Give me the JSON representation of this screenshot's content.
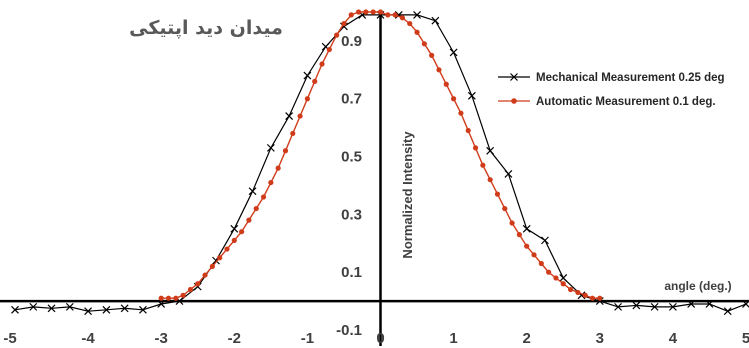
{
  "chart_data": {
    "type": "line",
    "title": "میدان دید اپتیکی",
    "xlabel": "angle (deg.)",
    "ylabel": "Normalized Intensity",
    "xlim": [
      -5,
      5
    ],
    "ylim": [
      -0.1,
      1.0
    ],
    "x_ticks": [
      "-5",
      "-4",
      "-3",
      "-2",
      "-1",
      "0",
      "1",
      "2",
      "3",
      "4",
      "5"
    ],
    "y_ticks": [
      "-0.1",
      "0.1",
      "0.3",
      "0.5",
      "0.7",
      "0.9"
    ],
    "y_tick_values": [
      -0.1,
      0.1,
      0.3,
      0.5,
      0.7,
      0.9
    ],
    "grid": false,
    "legend_position": "right",
    "series": [
      {
        "name": "Mechanical Measurement 0.25 deg",
        "color": "#000000",
        "marker": "x",
        "x": [
          -5,
          -4.75,
          -4.5,
          -4.25,
          -4,
          -3.75,
          -3.5,
          -3.25,
          -3,
          -2.75,
          -2.5,
          -2.25,
          -2,
          -1.75,
          -1.5,
          -1.25,
          -1,
          -0.75,
          -0.5,
          -0.25,
          0,
          0.25,
          0.5,
          0.75,
          1,
          1.25,
          1.5,
          1.75,
          2,
          2.25,
          2.5,
          2.75,
          3,
          3.25,
          3.5,
          3.75,
          4,
          4.25,
          4.5,
          4.75,
          5
        ],
        "y": [
          -0.03,
          -0.02,
          -0.025,
          -0.02,
          -0.035,
          -0.03,
          -0.025,
          -0.03,
          -0.01,
          0.0,
          0.05,
          0.14,
          0.25,
          0.38,
          0.53,
          0.64,
          0.78,
          0.88,
          0.95,
          0.99,
          0.99,
          0.99,
          0.99,
          0.97,
          0.86,
          0.71,
          0.52,
          0.44,
          0.25,
          0.21,
          0.08,
          0.02,
          0.0,
          -0.02,
          -0.015,
          -0.02,
          -0.02,
          -0.01,
          -0.01,
          -0.035,
          -0.01
        ]
      },
      {
        "name": "Automatic Measurement 0.1 deg.",
        "color": "#d03c1a",
        "marker": "dot",
        "x": [
          -3,
          -2.9,
          -2.8,
          -2.7,
          -2.6,
          -2.5,
          -2.4,
          -2.3,
          -2.2,
          -2.1,
          -2,
          -1.9,
          -1.8,
          -1.7,
          -1.6,
          -1.5,
          -1.4,
          -1.3,
          -1.2,
          -1.1,
          -1,
          -0.9,
          -0.8,
          -0.7,
          -0.6,
          -0.5,
          -0.4,
          -0.3,
          -0.2,
          -0.1,
          0,
          0.1,
          0.2,
          0.3,
          0.4,
          0.5,
          0.6,
          0.7,
          0.8,
          0.9,
          1,
          1.1,
          1.2,
          1.3,
          1.4,
          1.5,
          1.6,
          1.7,
          1.8,
          1.9,
          2,
          2.1,
          2.2,
          2.3,
          2.4,
          2.5,
          2.6,
          2.7,
          2.8,
          2.9,
          3
        ],
        "y": [
          0.01,
          0.01,
          0.01,
          0.02,
          0.04,
          0.06,
          0.09,
          0.12,
          0.15,
          0.18,
          0.21,
          0.24,
          0.28,
          0.32,
          0.36,
          0.41,
          0.46,
          0.52,
          0.58,
          0.64,
          0.7,
          0.76,
          0.82,
          0.87,
          0.92,
          0.96,
          0.99,
          1.0,
          1.0,
          1.0,
          1.0,
          0.99,
          0.99,
          0.98,
          0.96,
          0.93,
          0.89,
          0.85,
          0.8,
          0.75,
          0.7,
          0.65,
          0.59,
          0.53,
          0.47,
          0.42,
          0.37,
          0.32,
          0.27,
          0.23,
          0.19,
          0.16,
          0.13,
          0.1,
          0.08,
          0.06,
          0.04,
          0.03,
          0.02,
          0.01,
          0.01
        ]
      }
    ]
  }
}
